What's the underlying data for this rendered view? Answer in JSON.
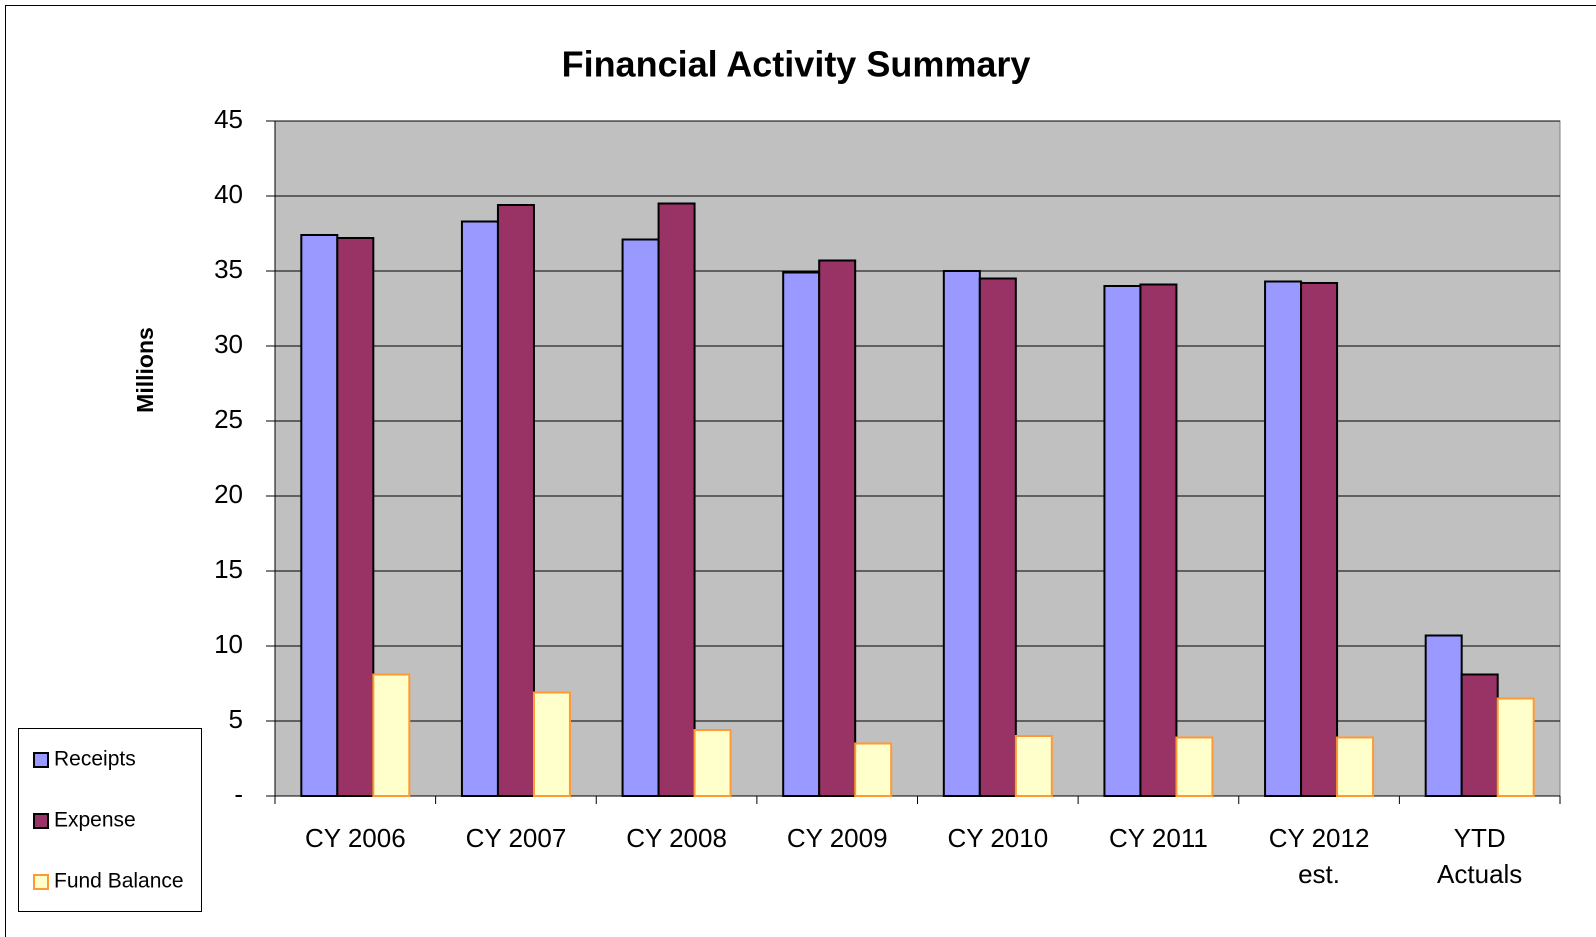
{
  "chart_data": {
    "type": "bar",
    "title": "Financial Activity Summary",
    "y_label": "Millions",
    "categories": [
      "CY 2006",
      "CY 2007",
      "CY 2008",
      "CY 2009",
      "CY 2010",
      "CY 2011",
      "CY 2012 est.",
      "YTD Actuals"
    ],
    "series": [
      {
        "name": "Receipts",
        "color": "#9999ff",
        "edgecolor": "#000000",
        "values": [
          37.4,
          38.3,
          37.1,
          34.9,
          35.0,
          34.0,
          34.3,
          10.7
        ]
      },
      {
        "name": "Expense",
        "color": "#993366",
        "edgecolor": "#000000",
        "values": [
          37.2,
          39.4,
          39.5,
          35.7,
          34.5,
          34.1,
          34.2,
          8.1
        ]
      },
      {
        "name": "Fund Balance",
        "color": "#ffffcc",
        "edgecolor": "#ff9933",
        "values": [
          8.1,
          6.9,
          4.4,
          3.5,
          4.0,
          3.9,
          3.9,
          6.5
        ]
      }
    ],
    "ylim": [
      0,
      45
    ],
    "yticks": [
      {
        "value": 0,
        "label": "-"
      },
      5,
      10,
      15,
      20,
      25,
      30,
      35,
      40,
      45
    ],
    "grid": true,
    "plot_background": "#c0c0c0",
    "legend": "lower left"
  }
}
